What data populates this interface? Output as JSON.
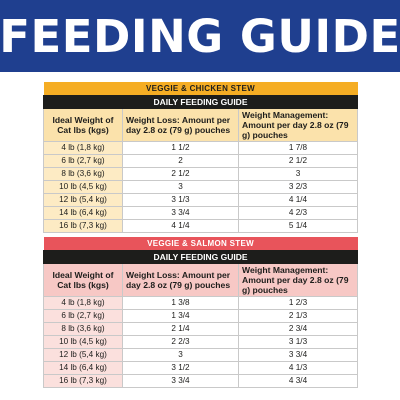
{
  "banner": {
    "title": "FEEDING GUIDE"
  },
  "tables": [
    {
      "recipe": "VEGGIE & CHICKEN STEW",
      "subtitle": "DAILY FEEDING GUIDE",
      "headers": [
        "Ideal Weight of Cat lbs (kgs)",
        "Weight Loss: Amount per day 2.8 oz (79 g) pouches",
        "Weight Management: Amount per day 2.8 oz (79 g) pouches"
      ],
      "rows": [
        [
          "4 lb (1,8 kg)",
          "1 1/2",
          "1 7/8"
        ],
        [
          "6 lb (2,7 kg)",
          "2",
          "2 1/2"
        ],
        [
          "8 lb (3,6 kg)",
          "2 1/2",
          "3"
        ],
        [
          "10 lb (4,5 kg)",
          "3",
          "3 2/3"
        ],
        [
          "12 lb (5,4 kg)",
          "3 1/3",
          "4 1/4"
        ],
        [
          "14 lb (6,4 kg)",
          "3 3/4",
          "4 2/3"
        ],
        [
          "16 lb (7,3 kg)",
          "4 1/4",
          "5 1/4"
        ]
      ]
    },
    {
      "recipe": "VEGGIE & SALMON STEW",
      "subtitle": "DAILY FEEDING GUIDE",
      "headers": [
        "Ideal Weight of Cat lbs (kgs)",
        "Weight Loss: Amount per day 2.8 oz (79 g) pouches",
        "Weight Management: Amount per day 2.8 oz (79 g) pouches"
      ],
      "rows": [
        [
          "4 lb (1,8 kg)",
          "1 3/8",
          "1 2/3"
        ],
        [
          "6 lb (2,7 kg)",
          "1 3/4",
          "2 1/3"
        ],
        [
          "8 lb (3,6 kg)",
          "2 1/4",
          "2 3/4"
        ],
        [
          "10 lb (4,5 kg)",
          "2 2/3",
          "3 1/3"
        ],
        [
          "12 lb (5,4 kg)",
          "3",
          "3 3/4"
        ],
        [
          "14 lb (6,4 kg)",
          "3 1/2",
          "4 1/3"
        ],
        [
          "16 lb (7,3 kg)",
          "3 3/4",
          "4 3/4"
        ]
      ]
    }
  ],
  "colors": {
    "banner": "#1f3f8f",
    "chicken_accent": "#f5ad24",
    "salmon_accent": "#e8545b",
    "guide_bar": "#1d1d1b"
  }
}
